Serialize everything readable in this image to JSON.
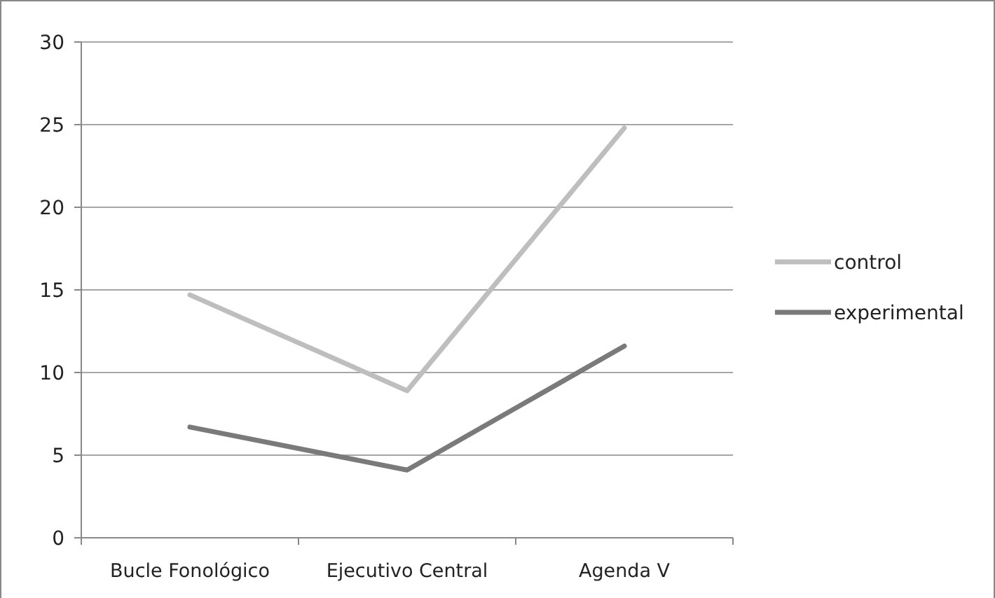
{
  "chart_data": {
    "type": "line",
    "categories": [
      "Bucle Fonológico",
      "Ejecutivo Central",
      "Agenda V"
    ],
    "series": [
      {
        "name": "control",
        "color": "#bebebe",
        "values": [
          14.7,
          8.9,
          24.8
        ]
      },
      {
        "name": "experimental",
        "color": "#7a7a7a",
        "values": [
          6.7,
          4.1,
          11.6
        ]
      }
    ],
    "ylim": [
      0,
      30
    ],
    "yticks": [
      0,
      5,
      10,
      15,
      20,
      25,
      30
    ],
    "grid": "y",
    "legend": "right",
    "marker": "none",
    "line_style": "solid"
  }
}
